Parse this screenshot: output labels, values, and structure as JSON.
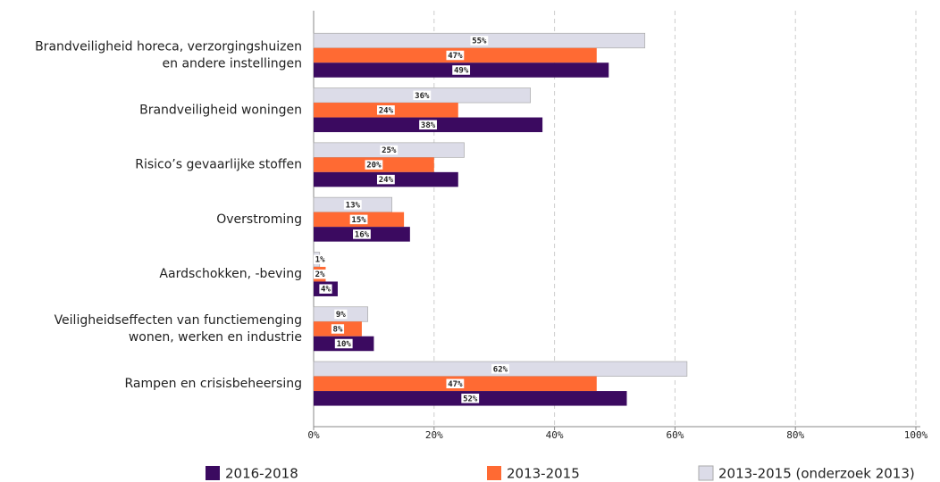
{
  "chart_data": {
    "type": "bar",
    "orientation": "horizontal",
    "categories": [
      [
        "Brandveiligheid horeca, verzorgingshuizen",
        "en andere instellingen"
      ],
      [
        "Brandveiligheid woningen"
      ],
      [
        "Risico’s gevaarlijke stoffen"
      ],
      [
        "Overstroming"
      ],
      [
        "Aardschokken, -beving"
      ],
      [
        "Veiligheidseffecten van functiemenging",
        "wonen, werken en industrie"
      ],
      [
        "Rampen en crisisbeheersing"
      ]
    ],
    "series": [
      {
        "name": "2013-2015 (onderzoek 2013)",
        "color": "#dcdce8",
        "values": [
          55,
          36,
          25,
          13,
          1,
          9,
          62
        ],
        "value_labels": [
          "55%",
          "36%",
          "25%",
          "13%",
          "1%",
          "9%",
          "62%"
        ]
      },
      {
        "name": "2013-2015",
        "color": "#ff6a33",
        "values": [
          47,
          24,
          20,
          15,
          2,
          8,
          47
        ],
        "value_labels": [
          "47%",
          "24%",
          "20%",
          "15%",
          "2%",
          "8%",
          "47%"
        ]
      },
      {
        "name": "2016-2018",
        "color": "#3b0a60",
        "values": [
          49,
          38,
          24,
          16,
          4,
          10,
          52
        ],
        "value_labels": [
          "49%",
          "38%",
          "24%",
          "16%",
          "4%",
          "10%",
          "52%"
        ]
      }
    ],
    "legend_order": [
      2,
      1,
      0
    ],
    "xlim": [
      0,
      100
    ],
    "xticks": [
      {
        "value": 0,
        "label": "0%"
      },
      {
        "value": 20,
        "label": "20%"
      },
      {
        "value": 40,
        "label": "40%"
      },
      {
        "value": 60,
        "label": "60%"
      },
      {
        "value": 80,
        "label": "80%"
      },
      {
        "value": 100,
        "label": "100%"
      }
    ],
    "grid": true
  }
}
